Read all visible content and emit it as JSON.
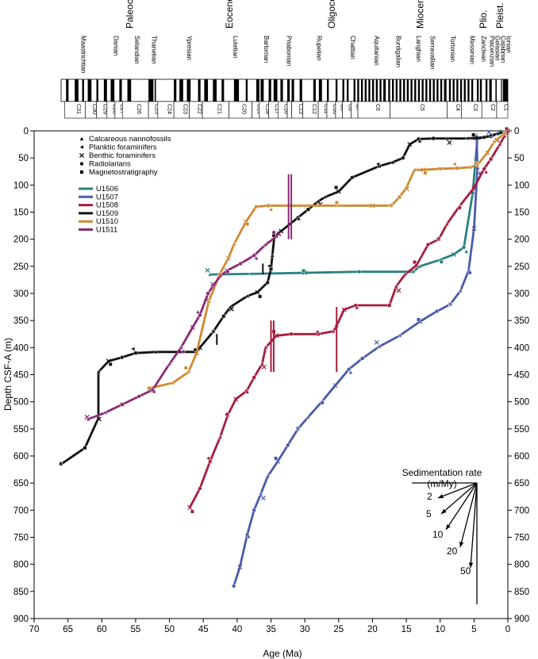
{
  "chart_data": {
    "type": "line",
    "xlabel": "Age (Ma)",
    "ylabel": "Depth CSF-A (m)",
    "xlim": [
      70,
      0
    ],
    "ylim": [
      900,
      0
    ],
    "x_ticks": [
      "70",
      "65",
      "60",
      "55",
      "50",
      "45",
      "40",
      "35",
      "30",
      "25",
      "20",
      "15",
      "10",
      "5",
      "0"
    ],
    "y_ticks": [
      "0",
      "50",
      "100",
      "150",
      "200",
      "250",
      "300",
      "350",
      "400",
      "450",
      "500",
      "550",
      "600",
      "650",
      "700",
      "750",
      "800",
      "850",
      "900"
    ],
    "right_axis_mirror": true,
    "epochs": [
      {
        "name": "",
        "start": 66,
        "end": 72.1,
        "color": "#8cc63f"
      },
      {
        "name": "Paleocene",
        "start": 56,
        "end": 66,
        "color": "#f4a460"
      },
      {
        "name": "Eocene",
        "start": 33.9,
        "end": 56,
        "color": "#f4a460"
      },
      {
        "name": "Oligocene",
        "start": 23,
        "end": 33.9,
        "color": "#fcd9a8"
      },
      {
        "name": "Miocene",
        "start": 5.3,
        "end": 23,
        "color": "#ffee22"
      },
      {
        "name": "Plio.",
        "start": 2.6,
        "end": 5.3,
        "color": "#ffff99"
      },
      {
        "name": "Pleist.",
        "start": 0,
        "end": 2.6,
        "color": "#ffffcc"
      }
    ],
    "stages": [
      {
        "name": "Maastrichtian",
        "start": 66,
        "end": 72.1,
        "color": "#a6d868"
      },
      {
        "name": "Danian",
        "start": 61.6,
        "end": 66,
        "color": "#f4a460"
      },
      {
        "name": "Selandian",
        "start": 59.2,
        "end": 61.6,
        "color": "#f6b878"
      },
      {
        "name": "Thanetian",
        "start": 56,
        "end": 59.2,
        "color": "#f8c490"
      },
      {
        "name": "Ypresian",
        "start": 47.8,
        "end": 56,
        "color": "#f6a870"
      },
      {
        "name": "Lutetian",
        "start": 41.2,
        "end": 47.8,
        "color": "#f8b888"
      },
      {
        "name": "Bartonian",
        "start": 37.8,
        "end": 41.2,
        "color": "#f9c49a"
      },
      {
        "name": "Priabonian",
        "start": 33.9,
        "end": 37.8,
        "color": "#facfac"
      },
      {
        "name": "Rupelian",
        "start": 28.1,
        "end": 33.9,
        "color": "#fcd9a8"
      },
      {
        "name": "Chattian",
        "start": 23,
        "end": 28.1,
        "color": "#fde2b8"
      },
      {
        "name": "Aquitanian",
        "start": 20.4,
        "end": 23,
        "color": "#ffee22"
      },
      {
        "name": "Burdigalian",
        "start": 16,
        "end": 20.4,
        "color": "#ffee33"
      },
      {
        "name": "Langhian",
        "start": 13.8,
        "end": 16,
        "color": "#ffef55"
      },
      {
        "name": "Serravallian",
        "start": 11.6,
        "end": 13.8,
        "color": "#fff066"
      },
      {
        "name": "Tortonian",
        "start": 7.2,
        "end": 11.6,
        "color": "#fff277"
      },
      {
        "name": "Messinian",
        "start": 5.3,
        "end": 7.2,
        "color": "#fff388"
      },
      {
        "name": "Zanclean",
        "start": 3.6,
        "end": 5.3,
        "color": "#ffff99"
      },
      {
        "name": "Piacenzian",
        "start": 2.6,
        "end": 3.6,
        "color": "#ffffaa"
      },
      {
        "name": "Gelasian",
        "start": 1.8,
        "end": 2.6,
        "color": "#ffffcc"
      },
      {
        "name": "Calabrian",
        "start": 0.8,
        "end": 1.8,
        "color": "#ffffd8"
      },
      {
        "name": "Ionian",
        "start": 0,
        "end": 0.8,
        "color": "#ffffe6"
      }
    ],
    "chrons": [
      {
        "name": "C31",
        "start": 68.2,
        "end": 71.5
      },
      {
        "name": "C30",
        "start": 66.4,
        "end": 68.2
      },
      {
        "name": "C29",
        "start": 64.7,
        "end": 66.4
      },
      {
        "name": "C28",
        "start": 63.4,
        "end": 64.7
      },
      {
        "name": "C27",
        "start": 62.2,
        "end": 63.4
      },
      {
        "name": "C26",
        "start": 58.0,
        "end": 62.2
      },
      {
        "name": "C25",
        "start": 56.5,
        "end": 58.0
      },
      {
        "name": "C24",
        "start": 53.9,
        "end": 56.5
      },
      {
        "name": "C23",
        "start": 51.4,
        "end": 53.9
      },
      {
        "name": "C22",
        "start": 49.3,
        "end": 51.4
      },
      {
        "name": "C21",
        "start": 45.0,
        "end": 49.3
      },
      {
        "name": "C20",
        "start": 41.3,
        "end": 45.0
      },
      {
        "name": "C19",
        "start": 40.1,
        "end": 41.3
      },
      {
        "name": "C18",
        "start": 38.6,
        "end": 40.1
      },
      {
        "name": "C17",
        "start": 37.1,
        "end": 38.6
      },
      {
        "name": "C16",
        "start": 35.6,
        "end": 37.1
      },
      {
        "name": "C15",
        "start": 34.9,
        "end": 35.6
      },
      {
        "name": "C13",
        "start": 33.1,
        "end": 34.9
      },
      {
        "name": "C12",
        "start": 30.6,
        "end": 33.1
      },
      {
        "name": "C11",
        "start": 29.2,
        "end": 30.6
      },
      {
        "name": "C10",
        "start": 27.8,
        "end": 29.2
      },
      {
        "name": "C9",
        "start": 26.7,
        "end": 27.8
      },
      {
        "name": "C8",
        "start": 25.3,
        "end": 26.7
      },
      {
        "name": "C7",
        "start": 24.2,
        "end": 25.3
      },
      {
        "name": "C6",
        "start": 19.0,
        "end": 24.2
      },
      {
        "name": "C5",
        "start": 9.8,
        "end": 19.0
      },
      {
        "name": "C4",
        "start": 7.5,
        "end": 9.8
      },
      {
        "name": "C3",
        "start": 4.2,
        "end": 7.5
      },
      {
        "name": "C2",
        "start": 1.8,
        "end": 4.2
      },
      {
        "name": "C1",
        "start": 0,
        "end": 1.8
      }
    ],
    "polarity_normal_intervals": [
      [
        70.9,
        71.3
      ],
      [
        69.3,
        69.9
      ],
      [
        68.4,
        68.7
      ],
      [
        67.2,
        67.8
      ],
      [
        66.1,
        66.4
      ],
      [
        64.7,
        65.2
      ],
      [
        63.5,
        64.1
      ],
      [
        62.3,
        62.7
      ],
      [
        60.8,
        61.4
      ],
      [
        57.2,
        58.0
      ],
      [
        56.8,
        57.0
      ],
      [
        53.5,
        53.9
      ],
      [
        52.4,
        53.0
      ],
      [
        51.2,
        51.8
      ],
      [
        49.6,
        50.0
      ],
      [
        48.4,
        49.0
      ],
      [
        47.0,
        47.6
      ],
      [
        45.8,
        46.2
      ],
      [
        43.4,
        44.2
      ],
      [
        42.0,
        42.3
      ],
      [
        40.1,
        40.6
      ],
      [
        39.4,
        39.9
      ],
      [
        38.2,
        38.6
      ],
      [
        37.2,
        37.8
      ],
      [
        36.3,
        36.7
      ],
      [
        35.2,
        35.6
      ],
      [
        34.5,
        34.9
      ],
      [
        33.2,
        33.6
      ],
      [
        31.0,
        31.4
      ],
      [
        30.0,
        30.5
      ],
      [
        28.9,
        29.2
      ],
      [
        27.5,
        27.8
      ],
      [
        26.4,
        26.7
      ],
      [
        25.7,
        26.0
      ],
      [
        24.6,
        24.9
      ],
      [
        24.0,
        24.3
      ],
      [
        23.4,
        23.7
      ],
      [
        22.8,
        23.1
      ],
      [
        22.2,
        22.5
      ],
      [
        21.6,
        21.9
      ],
      [
        21.0,
        21.3
      ],
      [
        20.4,
        20.7
      ],
      [
        19.7,
        20.1
      ],
      [
        19.0,
        19.3
      ],
      [
        18.4,
        18.7
      ],
      [
        17.8,
        18.1
      ],
      [
        17.2,
        17.5
      ],
      [
        16.6,
        16.9
      ],
      [
        16.0,
        16.3
      ],
      [
        15.4,
        15.7
      ],
      [
        14.8,
        15.1
      ],
      [
        14.2,
        14.5
      ],
      [
        13.6,
        13.9
      ],
      [
        13.0,
        13.3
      ],
      [
        12.4,
        12.7
      ],
      [
        11.8,
        12.1
      ],
      [
        11.2,
        11.5
      ],
      [
        10.6,
        10.9
      ],
      [
        9.9,
        10.3
      ],
      [
        9.2,
        9.5
      ],
      [
        8.6,
        8.9
      ],
      [
        8.0,
        8.3
      ],
      [
        7.4,
        7.7
      ],
      [
        6.8,
        7.1
      ],
      [
        6.2,
        6.5
      ],
      [
        5.6,
        5.9
      ],
      [
        4.7,
        5.0
      ],
      [
        4.2,
        4.5
      ],
      [
        3.3,
        3.6
      ],
      [
        2.6,
        3.0
      ],
      [
        1.8,
        2.0
      ],
      [
        1.0,
        1.1
      ],
      [
        0,
        0.8
      ]
    ],
    "legend_markers": [
      {
        "label": "Calcareous nannofossils",
        "marker": "triangle-up"
      },
      {
        "label": "Planktic foraminifers",
        "marker": "triangle-left"
      },
      {
        "label": "Benthic foraminifers",
        "marker": "x"
      },
      {
        "label": "Radiolarians",
        "marker": "circle"
      },
      {
        "label": "Magnetostratigraphy",
        "marker": "square"
      }
    ],
    "series": [
      {
        "name": "U1506",
        "color": "#2a8080",
        "points": [
          [
            44,
            265
          ],
          [
            38,
            264
          ],
          [
            30,
            262
          ],
          [
            22,
            260
          ],
          [
            14,
            260
          ],
          [
            13,
            250
          ],
          [
            10,
            238
          ],
          [
            8,
            228
          ],
          [
            6.5,
            215
          ],
          [
            5.2,
            115
          ],
          [
            4.5,
            15
          ],
          [
            2.2,
            8
          ],
          [
            1.0,
            3
          ],
          [
            0,
            0
          ]
        ]
      },
      {
        "name": "U1507",
        "color": "#4a5ba8",
        "points": [
          [
            40.5,
            840
          ],
          [
            39.6,
            805
          ],
          [
            38.5,
            745
          ],
          [
            37.5,
            700
          ],
          [
            36.5,
            670
          ],
          [
            35.5,
            638
          ],
          [
            34,
            610
          ],
          [
            32.5,
            580
          ],
          [
            31,
            550
          ],
          [
            29.5,
            528
          ],
          [
            27.5,
            500
          ],
          [
            25.5,
            470
          ],
          [
            23.5,
            440
          ],
          [
            21.5,
            420
          ],
          [
            19,
            398
          ],
          [
            16,
            378
          ],
          [
            13,
            352
          ],
          [
            10.5,
            333
          ],
          [
            8.5,
            320
          ],
          [
            7,
            295
          ],
          [
            5.8,
            258
          ],
          [
            5.0,
            180
          ],
          [
            4.5,
            70
          ],
          [
            4.6,
            15
          ],
          [
            2.5,
            8
          ],
          [
            0.5,
            2
          ]
        ]
      },
      {
        "name": "U1508",
        "color": "#a51e3c",
        "points": [
          [
            47,
            695
          ],
          [
            45.5,
            660
          ],
          [
            44,
            610
          ],
          [
            42.5,
            565
          ],
          [
            41.4,
            525
          ],
          [
            40.2,
            495
          ],
          [
            38.6,
            480
          ],
          [
            37.5,
            455
          ],
          [
            36.3,
            430
          ],
          [
            35.8,
            400
          ],
          [
            34.2,
            378
          ],
          [
            32,
            375
          ],
          [
            28,
            375
          ],
          [
            25.8,
            370
          ],
          [
            25.3,
            360
          ],
          [
            24.2,
            330
          ],
          [
            22.5,
            322
          ],
          [
            17.5,
            322
          ],
          [
            16.5,
            287
          ],
          [
            15.2,
            265
          ],
          [
            13.5,
            248
          ],
          [
            11.8,
            210
          ],
          [
            10.2,
            200
          ],
          [
            9,
            172
          ],
          [
            7.2,
            140
          ],
          [
            5,
            105
          ],
          [
            3.5,
            70
          ],
          [
            2.5,
            52
          ],
          [
            1.2,
            25
          ],
          [
            0.5,
            10
          ],
          [
            0,
            0
          ]
        ]
      },
      {
        "name": "U1509",
        "color": "#111111",
        "points": [
          [
            66,
            615
          ],
          [
            62.5,
            585
          ],
          [
            60.5,
            530
          ],
          [
            60.5,
            445
          ],
          [
            59,
            425
          ],
          [
            57,
            418
          ],
          [
            55,
            410
          ],
          [
            52,
            408
          ],
          [
            46,
            408
          ],
          [
            45.5,
            400
          ],
          [
            43.5,
            370
          ],
          [
            42,
            342
          ],
          [
            41,
            325
          ],
          [
            38.5,
            305
          ],
          [
            37,
            298
          ],
          [
            35.5,
            280
          ],
          [
            35,
            255
          ],
          [
            34.8,
            230
          ],
          [
            34.5,
            195
          ],
          [
            33.5,
            185
          ],
          [
            31,
            160
          ],
          [
            29.5,
            145
          ],
          [
            28,
            130
          ],
          [
            27,
            122
          ],
          [
            25,
            112
          ],
          [
            23,
            86
          ],
          [
            19,
            65
          ],
          [
            17,
            58
          ],
          [
            15.5,
            50
          ],
          [
            14.5,
            25
          ],
          [
            13.2,
            15
          ],
          [
            11,
            14
          ],
          [
            9,
            14
          ],
          [
            6,
            14
          ],
          [
            4.8,
            13
          ],
          [
            3.5,
            12
          ],
          [
            2.5,
            10
          ],
          [
            1.5,
            5
          ],
          [
            0.5,
            2
          ]
        ]
      },
      {
        "name": "U1510",
        "color": "#d08a30",
        "points": [
          [
            53,
            475
          ],
          [
            49.5,
            465
          ],
          [
            47.2,
            445
          ],
          [
            46,
            410
          ],
          [
            44.2,
            315
          ],
          [
            42.6,
            265
          ],
          [
            41.3,
            235
          ],
          [
            40.5,
            210
          ],
          [
            38.7,
            168
          ],
          [
            37.2,
            140
          ],
          [
            35.4,
            138
          ],
          [
            30,
            138
          ],
          [
            25,
            138
          ],
          [
            20,
            138
          ],
          [
            17.2,
            138
          ],
          [
            16,
            122
          ],
          [
            15,
            105
          ],
          [
            13.8,
            72
          ],
          [
            12.5,
            72
          ],
          [
            10,
            70
          ],
          [
            7.5,
            69
          ],
          [
            5.5,
            67
          ],
          [
            4.5,
            63
          ],
          [
            3,
            40
          ],
          [
            2,
            20
          ],
          [
            0.5,
            5
          ]
        ]
      },
      {
        "name": "U1511",
        "color": "#8a2a76",
        "points": [
          [
            62,
            532
          ],
          [
            59.5,
            520
          ],
          [
            57,
            505
          ],
          [
            54.5,
            490
          ],
          [
            52.5,
            478
          ],
          [
            50,
            430
          ],
          [
            48.3,
            400
          ],
          [
            46.6,
            363
          ],
          [
            45.5,
            340
          ],
          [
            44.3,
            300
          ],
          [
            43.5,
            285
          ],
          [
            42.5,
            268
          ],
          [
            41.5,
            258
          ],
          [
            39.5,
            245
          ],
          [
            37.5,
            230
          ],
          [
            35.8,
            210
          ],
          [
            34.2,
            195
          ],
          [
            33.8,
            190
          ]
        ]
      }
    ],
    "sedimentation_rate": {
      "title_line1": "Sedimentation rate",
      "title_line2": "(m/My)",
      "rates": [
        "2",
        "5",
        "10",
        "20",
        "50"
      ]
    }
  }
}
